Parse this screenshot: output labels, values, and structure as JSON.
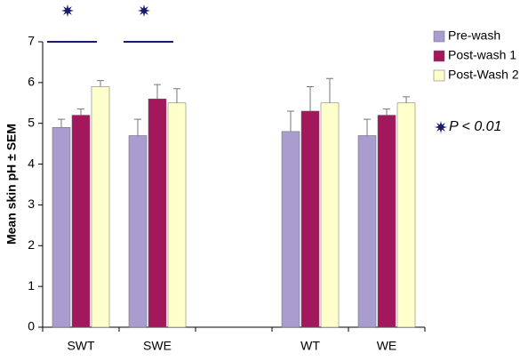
{
  "chart_data": {
    "type": "bar",
    "y_label": "Mean skin pH ± SEM",
    "categories": [
      "SWT",
      "SWE",
      null,
      "WT",
      "WE"
    ],
    "series": [
      {
        "name": "Pre-wash",
        "color": "#a99dd0",
        "values": [
          4.9,
          4.7,
          null,
          4.8,
          4.7
        ],
        "errors": [
          0.2,
          0.4,
          null,
          0.5,
          0.4
        ]
      },
      {
        "name": "Post-wash 1",
        "color": "#a3175c",
        "values": [
          5.2,
          5.6,
          null,
          5.3,
          5.2
        ],
        "errors": [
          0.15,
          0.35,
          null,
          0.6,
          0.15
        ]
      },
      {
        "name": "Post-Wash 2",
        "color": "#ffffcc",
        "values": [
          5.9,
          5.5,
          null,
          5.5,
          5.5
        ],
        "errors": [
          0.15,
          0.35,
          null,
          0.6,
          0.15
        ]
      }
    ],
    "ylim": [
      0,
      7
    ],
    "yticks": [
      0,
      1,
      2,
      3,
      4,
      5,
      6,
      7
    ],
    "annotation": "P < 0.01"
  }
}
